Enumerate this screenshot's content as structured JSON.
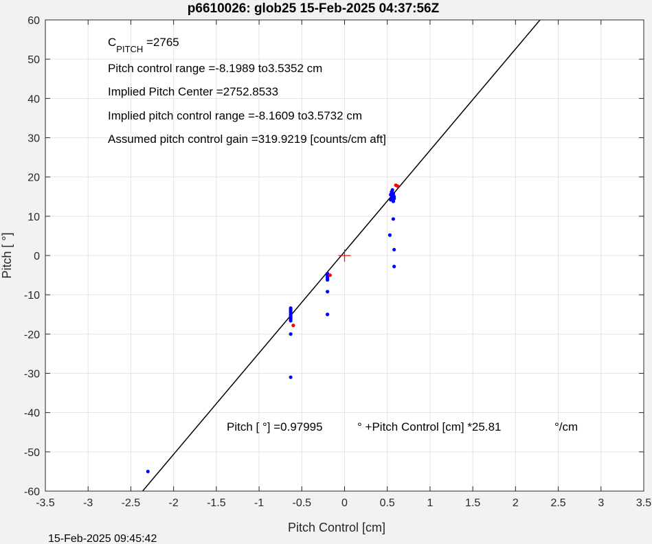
{
  "chart_data": {
    "type": "scatter",
    "title": "p6610026: glob25 15-Feb-2025 04:37:56Z",
    "xlabel": "Pitch Control [cm]",
    "ylabel": "Pitch [ °]",
    "xlim": [
      -3.5,
      3.5
    ],
    "ylim": [
      -60,
      60
    ],
    "xticks": [
      -3.5,
      -3,
      -2.5,
      -2,
      -1.5,
      -1,
      -0.5,
      0,
      0.5,
      1,
      1.5,
      2,
      2.5,
      3,
      3.5
    ],
    "yticks": [
      -60,
      -50,
      -40,
      -30,
      -20,
      -10,
      0,
      10,
      20,
      30,
      40,
      50,
      60
    ],
    "xtick_labels": [
      "-3.5",
      "-3",
      "-2.5",
      "-2",
      "-1.5",
      "-1",
      "-0.5",
      "0",
      "0.5",
      "1",
      "1.5",
      "2",
      "2.5",
      "3",
      "3.5"
    ],
    "ytick_labels": [
      "-60",
      "-50",
      "-40",
      "-30",
      "-20",
      "-10",
      "0",
      "10",
      "20",
      "30",
      "40",
      "50",
      "60"
    ],
    "grid": true,
    "series": [
      {
        "color": "#0000ff",
        "points": [
          [
            -2.3,
            -55
          ],
          [
            -0.63,
            -31
          ],
          [
            -0.63,
            -20
          ],
          [
            -0.63,
            -16.6
          ],
          [
            -0.63,
            -16.2
          ],
          [
            -0.63,
            -15.8
          ],
          [
            -0.63,
            -15.4
          ],
          [
            -0.63,
            -15.0
          ],
          [
            -0.63,
            -14.6
          ],
          [
            -0.63,
            -14.2
          ],
          [
            -0.63,
            -13.8
          ],
          [
            -0.63,
            -13.4
          ],
          [
            -0.2,
            -15
          ],
          [
            -0.2,
            -9.2
          ],
          [
            -0.2,
            -6.2
          ],
          [
            -0.2,
            -5.8
          ],
          [
            -0.2,
            -5.4
          ],
          [
            -0.2,
            -5.0
          ],
          [
            -0.2,
            -4.6
          ],
          [
            0.53,
            5.2
          ],
          [
            0.57,
            9.3
          ],
          [
            0.58,
            1.5
          ],
          [
            0.58,
            -2.8
          ],
          [
            0.54,
            14.2
          ],
          [
            0.55,
            14.7
          ],
          [
            0.56,
            15.2
          ],
          [
            0.57,
            15.7
          ],
          [
            0.55,
            16.2
          ],
          [
            0.56,
            16.7
          ],
          [
            0.58,
            14.5
          ],
          [
            0.57,
            13.8
          ],
          [
            0.54,
            15.5
          ],
          [
            0.56,
            16.0
          ],
          [
            0.58,
            15.0
          ]
        ]
      },
      {
        "color": "#ff0000",
        "points": [
          [
            -0.6,
            -17.8
          ],
          [
            -0.17,
            -5
          ],
          [
            0.6,
            17.9
          ],
          [
            0.62,
            17.7
          ]
        ]
      }
    ],
    "fit_line": {
      "slope": 25.81,
      "intercept": 0.97995,
      "color": "#000000"
    },
    "center_marker": {
      "x": 0,
      "y": 0,
      "color": "#ff0000"
    },
    "annotations": [
      {
        "text": "C",
        "sub": "PITCH",
        "tail": " =2765"
      },
      {
        "text": "Pitch control range =-8.1989 to3.5352 cm"
      },
      {
        "text": "Implied Pitch Center =2752.8533"
      },
      {
        "text": "Implied pitch control range =-8.1609 to3.5732 cm"
      },
      {
        "text": "Assumed pitch control gain =319.9219 [counts/cm aft]"
      }
    ],
    "equation": {
      "part1": "Pitch [  °] =0.97995",
      "part2": "° +Pitch Control [cm] *25.81",
      "part3": "°/cm"
    },
    "footer": "15-Feb-2025 09:45:42"
  }
}
